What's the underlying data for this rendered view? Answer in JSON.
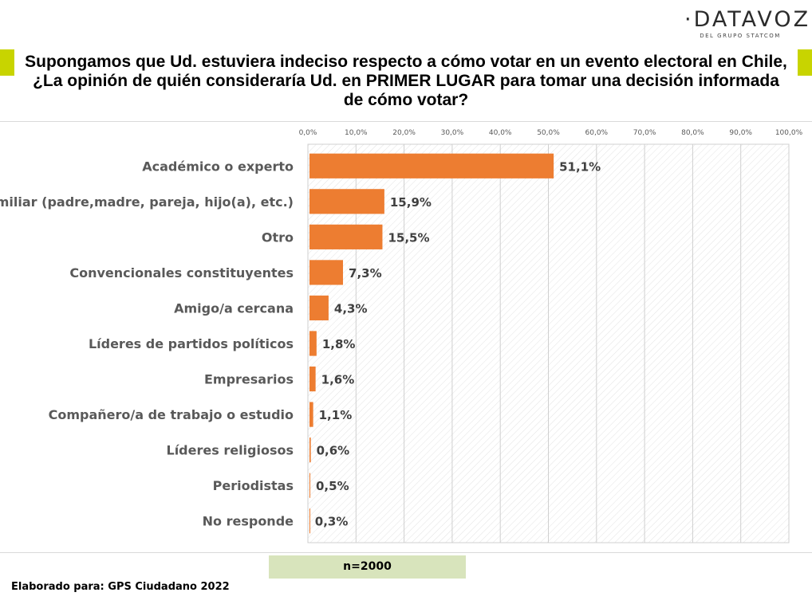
{
  "branding": {
    "name": "·DATAVOZ.",
    "tagline": "DEL GRUPO STATCOM"
  },
  "title": "Supongamos que Ud. estuviera indeciso respecto a cómo votar en un evento electoral en Chile, ¿La opinión de quién consideraría Ud. en PRIMER LUGAR para tomar una decisión informada de cómo votar?",
  "sample": "n=2000",
  "footer": "Elaborado para:  GPS Ciudadano 2022",
  "colors": {
    "bar": "#ed7d31",
    "accent": "#c8d400",
    "sample_box": "#d8e4bc"
  },
  "chart_data": {
    "type": "bar",
    "orientation": "horizontal",
    "categories": [
      "Académico o experto",
      "Familiar (padre,madre, pareja, hijo(a), etc.)",
      "Otro",
      "Convencionales constituyentes",
      "Amigo/a cercana",
      "Líderes de partidos políticos",
      "Empresarios",
      "Compañero/a de trabajo o estudio",
      "Líderes religiosos",
      "Periodistas",
      "No responde"
    ],
    "values": [
      51.1,
      15.9,
      15.5,
      7.3,
      4.3,
      1.8,
      1.6,
      1.1,
      0.6,
      0.5,
      0.3
    ],
    "value_labels": [
      "51,1%",
      "15,9%",
      "15,5%",
      "7,3%",
      "4,3%",
      "1,8%",
      "1,6%",
      "1,1%",
      "0,6%",
      "0,5%",
      "0,3%"
    ],
    "ticks": [
      "0,0%",
      "10,0%",
      "20,0%",
      "30,0%",
      "40,0%",
      "50,0%",
      "60,0%",
      "70,0%",
      "80,0%",
      "90,0%",
      "100,0%"
    ],
    "xlim": [
      0,
      100
    ],
    "axis_position": "top",
    "grid": true,
    "legend": "none"
  }
}
